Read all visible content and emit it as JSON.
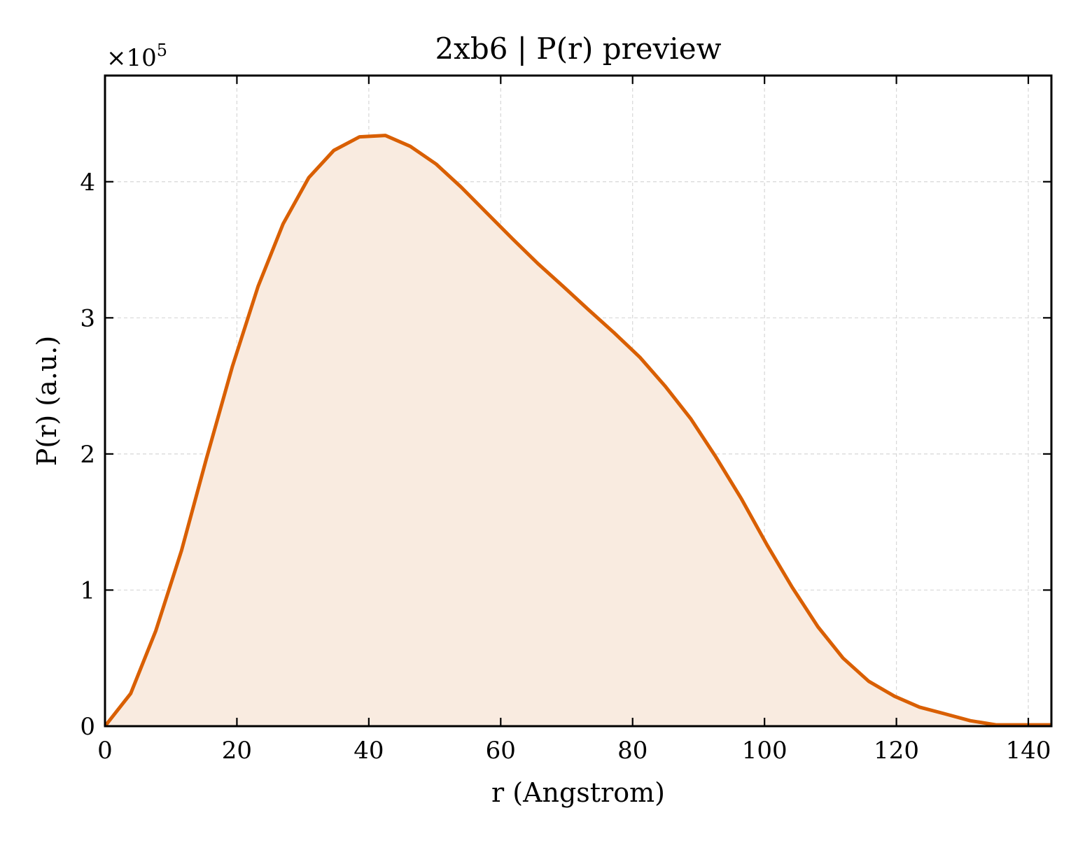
{
  "chart_data": {
    "type": "area",
    "title": "2xb6 | P(r) preview",
    "xlabel": "r (Angstrom)",
    "ylabel": "P(r) (a.u.)",
    "y_multiplier_label": "×10",
    "y_multiplier_exponent": "5",
    "xlim": [
      0,
      143.5
    ],
    "ylim": [
      0,
      4.78
    ],
    "x_ticks": [
      0,
      20,
      40,
      60,
      80,
      100,
      120,
      140
    ],
    "y_ticks": [
      0,
      1,
      2,
      3,
      4
    ],
    "grid": true,
    "y_scale_factor": 100000,
    "series": [
      {
        "x": [
          0,
          3.9,
          7.7,
          11.6,
          15.4,
          19.3,
          23.2,
          27.0,
          30.9,
          34.7,
          38.6,
          42.5,
          46.3,
          50.2,
          54.0,
          57.9,
          61.8,
          65.6,
          69.5,
          73.3,
          77.2,
          81.1,
          84.9,
          88.8,
          92.6,
          96.5,
          100.4,
          104.2,
          108.1,
          111.9,
          115.8,
          119.7,
          123.5,
          127.4,
          131.2,
          135.1,
          139.0,
          143.5
        ],
        "y": [
          0.0,
          0.24,
          0.7,
          1.29,
          1.97,
          2.64,
          3.23,
          3.69,
          4.03,
          4.23,
          4.33,
          4.34,
          4.26,
          4.13,
          3.96,
          3.77,
          3.58,
          3.4,
          3.23,
          3.06,
          2.89,
          2.71,
          2.5,
          2.26,
          1.98,
          1.67,
          1.33,
          1.02,
          0.73,
          0.5,
          0.33,
          0.22,
          0.14,
          0.09,
          0.04,
          0.01,
          0.01,
          0.01
        ]
      }
    ],
    "colors": {
      "line": "#d95f02",
      "fill": "#f9ebe0",
      "grid": "#d7d7d7",
      "axes": "#000000"
    }
  }
}
